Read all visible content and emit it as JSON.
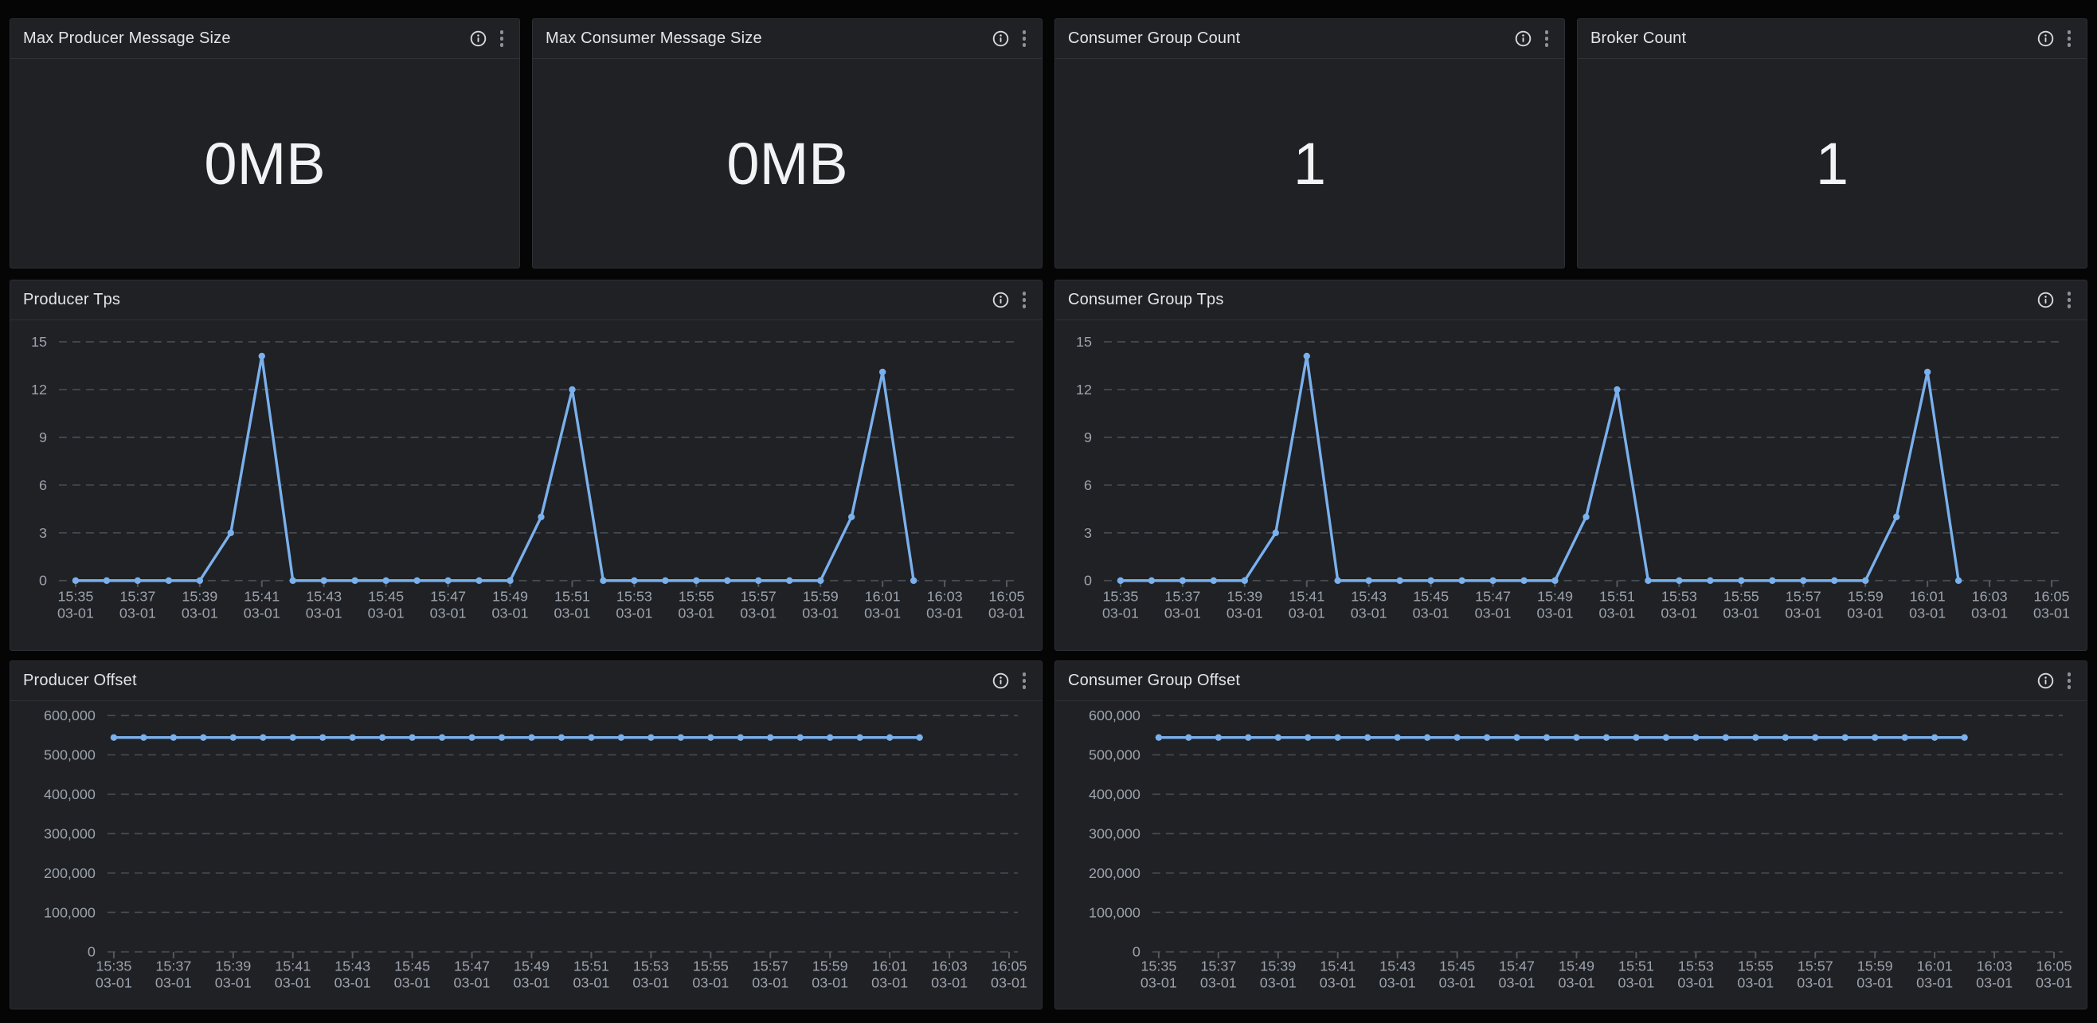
{
  "colors": {
    "page_background": "#050506",
    "panel_background": "#1f2125",
    "panel_border": "#2c2f34",
    "title_text": "#e4e5e7",
    "stat_value_text": "#f2f3f5",
    "axis_text": "#9ca2ac",
    "gridline": "#474b52",
    "series_line": "#7ab0ec"
  },
  "stat_panels": [
    {
      "title": "Max Producer Message Size",
      "value": "0MB"
    },
    {
      "title": "Max Consumer Message Size",
      "value": "0MB"
    },
    {
      "title": "Consumer Group Count",
      "value": "1"
    },
    {
      "title": "Broker Count",
      "value": "1"
    }
  ],
  "chart_data": [
    {
      "id": "producer-tps",
      "type": "line",
      "title": "Producer Tps",
      "line_color": "#7ab0ec",
      "grid": "horizontal dashed",
      "legend": "none",
      "ylim": [
        0,
        15
      ],
      "y_ticks": [
        0,
        3,
        6,
        9,
        12,
        15
      ],
      "y_tick_labels": [
        "0",
        "3",
        "6",
        "9",
        "12",
        "15"
      ],
      "x_tick_labels": [
        {
          "time": "15:35",
          "date": "03-01"
        },
        {
          "time": "15:37",
          "date": "03-01"
        },
        {
          "time": "15:39",
          "date": "03-01"
        },
        {
          "time": "15:41",
          "date": "03-01"
        },
        {
          "time": "15:43",
          "date": "03-01"
        },
        {
          "time": "15:45",
          "date": "03-01"
        },
        {
          "time": "15:47",
          "date": "03-01"
        },
        {
          "time": "15:49",
          "date": "03-01"
        },
        {
          "time": "15:51",
          "date": "03-01"
        },
        {
          "time": "15:53",
          "date": "03-01"
        },
        {
          "time": "15:55",
          "date": "03-01"
        },
        {
          "time": "15:57",
          "date": "03-01"
        },
        {
          "time": "15:59",
          "date": "03-01"
        },
        {
          "time": "16:01",
          "date": "03-01"
        },
        {
          "time": "16:03",
          "date": "03-01"
        },
        {
          "time": "16:05",
          "date": "03-01"
        }
      ],
      "x": [
        "15:35",
        "15:36",
        "15:37",
        "15:38",
        "15:39",
        "15:40",
        "15:41",
        "15:42",
        "15:43",
        "15:44",
        "15:45",
        "15:46",
        "15:47",
        "15:48",
        "15:49",
        "15:50",
        "15:51",
        "15:52",
        "15:53",
        "15:54",
        "15:55",
        "15:56",
        "15:57",
        "15:58",
        "15:59",
        "16:00",
        "16:01",
        "16:02"
      ],
      "values": [
        0,
        0,
        0,
        0,
        0,
        3,
        14.1,
        0,
        0,
        0,
        0,
        0,
        0,
        0,
        0,
        4,
        12,
        0,
        0,
        0,
        0,
        0,
        0,
        0,
        0,
        4,
        13.1,
        0
      ]
    },
    {
      "id": "consumer-group-tps",
      "type": "line",
      "title": "Consumer Group Tps",
      "line_color": "#7ab0ec",
      "grid": "horizontal dashed",
      "legend": "none",
      "ylim": [
        0,
        15
      ],
      "y_ticks": [
        0,
        3,
        6,
        9,
        12,
        15
      ],
      "y_tick_labels": [
        "0",
        "3",
        "6",
        "9",
        "12",
        "15"
      ],
      "x_tick_labels": [
        {
          "time": "15:35",
          "date": "03-01"
        },
        {
          "time": "15:37",
          "date": "03-01"
        },
        {
          "time": "15:39",
          "date": "03-01"
        },
        {
          "time": "15:41",
          "date": "03-01"
        },
        {
          "time": "15:43",
          "date": "03-01"
        },
        {
          "time": "15:45",
          "date": "03-01"
        },
        {
          "time": "15:47",
          "date": "03-01"
        },
        {
          "time": "15:49",
          "date": "03-01"
        },
        {
          "time": "15:51",
          "date": "03-01"
        },
        {
          "time": "15:53",
          "date": "03-01"
        },
        {
          "time": "15:55",
          "date": "03-01"
        },
        {
          "time": "15:57",
          "date": "03-01"
        },
        {
          "time": "15:59",
          "date": "03-01"
        },
        {
          "time": "16:01",
          "date": "03-01"
        },
        {
          "time": "16:03",
          "date": "03-01"
        },
        {
          "time": "16:05",
          "date": "03-01"
        }
      ],
      "x": [
        "15:35",
        "15:36",
        "15:37",
        "15:38",
        "15:39",
        "15:40",
        "15:41",
        "15:42",
        "15:43",
        "15:44",
        "15:45",
        "15:46",
        "15:47",
        "15:48",
        "15:49",
        "15:50",
        "15:51",
        "15:52",
        "15:53",
        "15:54",
        "15:55",
        "15:56",
        "15:57",
        "15:58",
        "15:59",
        "16:00",
        "16:01",
        "16:02"
      ],
      "values": [
        0,
        0,
        0,
        0,
        0,
        3,
        14.1,
        0,
        0,
        0,
        0,
        0,
        0,
        0,
        0,
        4,
        12,
        0,
        0,
        0,
        0,
        0,
        0,
        0,
        0,
        4,
        13.1,
        0
      ]
    },
    {
      "id": "producer-offset",
      "type": "line",
      "title": "Producer Offset",
      "line_color": "#7ab0ec",
      "grid": "horizontal dashed",
      "legend": "none",
      "ylim": [
        0,
        600000
      ],
      "y_ticks": [
        0,
        100000,
        200000,
        300000,
        400000,
        500000,
        600000
      ],
      "y_tick_labels": [
        "0",
        "100,000",
        "200,000",
        "300,000",
        "400,000",
        "500,000",
        "600,000"
      ],
      "x_tick_labels": [
        {
          "time": "15:35",
          "date": "03-01"
        },
        {
          "time": "15:37",
          "date": "03-01"
        },
        {
          "time": "15:39",
          "date": "03-01"
        },
        {
          "time": "15:41",
          "date": "03-01"
        },
        {
          "time": "15:43",
          "date": "03-01"
        },
        {
          "time": "15:45",
          "date": "03-01"
        },
        {
          "time": "15:47",
          "date": "03-01"
        },
        {
          "time": "15:49",
          "date": "03-01"
        },
        {
          "time": "15:51",
          "date": "03-01"
        },
        {
          "time": "15:53",
          "date": "03-01"
        },
        {
          "time": "15:55",
          "date": "03-01"
        },
        {
          "time": "15:57",
          "date": "03-01"
        },
        {
          "time": "15:59",
          "date": "03-01"
        },
        {
          "time": "16:01",
          "date": "03-01"
        },
        {
          "time": "16:03",
          "date": "03-01"
        },
        {
          "time": "16:05",
          "date": "03-01"
        }
      ],
      "x": [
        "15:35",
        "15:36",
        "15:37",
        "15:38",
        "15:39",
        "15:40",
        "15:41",
        "15:42",
        "15:43",
        "15:44",
        "15:45",
        "15:46",
        "15:47",
        "15:48",
        "15:49",
        "15:50",
        "15:51",
        "15:52",
        "15:53",
        "15:54",
        "15:55",
        "15:56",
        "15:57",
        "15:58",
        "15:59",
        "16:00",
        "16:01",
        "16:02"
      ],
      "values": [
        544000,
        544000,
        544000,
        544000,
        544000,
        544000,
        544000,
        544000,
        544000,
        544000,
        544000,
        544000,
        544000,
        544000,
        544000,
        544000,
        544000,
        544000,
        544000,
        544000,
        544000,
        544000,
        544000,
        544000,
        544000,
        544000,
        544000,
        544000
      ]
    },
    {
      "id": "consumer-group-offset",
      "type": "line",
      "title": "Consumer Group Offset",
      "line_color": "#7ab0ec",
      "grid": "horizontal dashed",
      "legend": "none",
      "ylim": [
        0,
        600000
      ],
      "y_ticks": [
        0,
        100000,
        200000,
        300000,
        400000,
        500000,
        600000
      ],
      "y_tick_labels": [
        "0",
        "100,000",
        "200,000",
        "300,000",
        "400,000",
        "500,000",
        "600,000"
      ],
      "x_tick_labels": [
        {
          "time": "15:35",
          "date": "03-01"
        },
        {
          "time": "15:37",
          "date": "03-01"
        },
        {
          "time": "15:39",
          "date": "03-01"
        },
        {
          "time": "15:41",
          "date": "03-01"
        },
        {
          "time": "15:43",
          "date": "03-01"
        },
        {
          "time": "15:45",
          "date": "03-01"
        },
        {
          "time": "15:47",
          "date": "03-01"
        },
        {
          "time": "15:49",
          "date": "03-01"
        },
        {
          "time": "15:51",
          "date": "03-01"
        },
        {
          "time": "15:53",
          "date": "03-01"
        },
        {
          "time": "15:55",
          "date": "03-01"
        },
        {
          "time": "15:57",
          "date": "03-01"
        },
        {
          "time": "15:59",
          "date": "03-01"
        },
        {
          "time": "16:01",
          "date": "03-01"
        },
        {
          "time": "16:03",
          "date": "03-01"
        },
        {
          "time": "16:05",
          "date": "03-01"
        }
      ],
      "x": [
        "15:35",
        "15:36",
        "15:37",
        "15:38",
        "15:39",
        "15:40",
        "15:41",
        "15:42",
        "15:43",
        "15:44",
        "15:45",
        "15:46",
        "15:47",
        "15:48",
        "15:49",
        "15:50",
        "15:51",
        "15:52",
        "15:53",
        "15:54",
        "15:55",
        "15:56",
        "15:57",
        "15:58",
        "15:59",
        "16:00",
        "16:01",
        "16:02"
      ],
      "values": [
        544000,
        544000,
        544000,
        544000,
        544000,
        544000,
        544000,
        544000,
        544000,
        544000,
        544000,
        544000,
        544000,
        544000,
        544000,
        544000,
        544000,
        544000,
        544000,
        544000,
        544000,
        544000,
        544000,
        544000,
        544000,
        544000,
        544000,
        544000
      ]
    }
  ]
}
